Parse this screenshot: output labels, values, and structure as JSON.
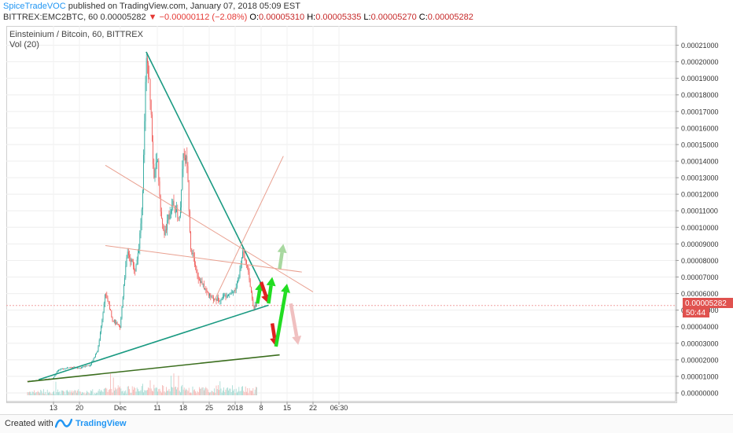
{
  "header": {
    "author": "SpiceTradeVOC",
    "published": "published on TradingView.com, January 07, 2018 05:09 EST",
    "symbol": "BITTREX:EMC2BTC, 60",
    "price": "0.00005282",
    "change_icon": "down-triangle-icon",
    "change": "−0.00000112 (−2.08%)",
    "o_label": "O:",
    "o_value": "0.00005310",
    "h_label": "H:",
    "h_value": "0.00005335",
    "l_label": "L:",
    "l_value": "0.00005270",
    "c_label": "C:",
    "c_value": "0.00005282"
  },
  "legend": {
    "title": "Einsteinium / Bitcoin, 60, BITTREX",
    "volume": "Vol (20)"
  },
  "price_badge": {
    "price": "0.00005282",
    "countdown": "50:44"
  },
  "footer": {
    "created": "Created with",
    "brand": "TradingView",
    "logo_icon": "tradingview-logo-icon"
  },
  "colors": {
    "up": "#26a69a",
    "down": "#ef5350",
    "trend_main": "#1a9a82",
    "support_dark": "#3b6e1e",
    "trend_light": "#e9a090",
    "price_badge": "#e0524f",
    "arrow_green": "#22dd22",
    "arrow_red": "#e02020"
  },
  "chart_data": {
    "type": "candlestick",
    "symbol": "EMC2/BTC",
    "timeframe": "60",
    "x_tick_labels": [
      "13",
      "20",
      "Dec",
      "11",
      "18",
      "25",
      "2018",
      "8",
      "15",
      "22",
      "06:30"
    ],
    "y_tick_labels": [
      "0.00021000",
      "0.00020000",
      "0.00019000",
      "0.00018000",
      "0.00017000",
      "0.00016000",
      "0.00015000",
      "0.00014000",
      "0.00013000",
      "0.00012000",
      "0.00011000",
      "0.00010000",
      "0.00009000",
      "0.00008000",
      "0.00007000",
      "0.00006000",
      "0.00005000",
      "0.00004000",
      "0.00003000",
      "0.00002000",
      "0.00001000",
      "0.00000000"
    ],
    "ylim": [
      0,
      0.000215
    ],
    "last_price": 5.282e-05,
    "price_path": [
      [
        "2017-11-06",
        7.2e-06
      ],
      [
        "2017-11-10",
        7.8e-06
      ],
      [
        "2017-11-13",
        9e-06
      ],
      [
        "2017-11-14",
        1.35e-05
      ],
      [
        "2017-11-17",
        1.55e-05
      ],
      [
        "2017-11-20",
        1.5e-05
      ],
      [
        "2017-11-23",
        1.7e-05
      ],
      [
        "2017-11-25",
        2.65e-05
      ],
      [
        "2017-11-26",
        4.3e-05
      ],
      [
        "2017-11-27",
        6.1e-05
      ],
      [
        "2017-11-29",
        4.4e-05
      ],
      [
        "2017-12-01",
        3.9e-05
      ],
      [
        "2017-12-02",
        6.7e-05
      ],
      [
        "2017-12-03",
        8.5e-05
      ],
      [
        "2017-12-05",
        7.4e-05
      ],
      [
        "2017-12-06",
        8.8e-05
      ],
      [
        "2017-12-07",
        0.000115
      ],
      [
        "2017-12-08",
        0.0002
      ],
      [
        "2017-12-09",
        0.000185
      ],
      [
        "2017-12-10",
        0.00013
      ],
      [
        "2017-12-11",
        0.000145
      ],
      [
        "2017-12-12",
        0.000105
      ],
      [
        "2017-12-13",
        9.5e-05
      ],
      [
        "2017-12-14",
        0.000106
      ],
      [
        "2017-12-15",
        0.000115
      ],
      [
        "2017-12-17",
        0.000105
      ],
      [
        "2017-12-18",
        0.000145
      ],
      [
        "2017-12-19",
        0.00014
      ],
      [
        "2017-12-20",
        8.8e-05
      ],
      [
        "2017-12-22",
        7e-05
      ],
      [
        "2017-12-24",
        6.2e-05
      ],
      [
        "2017-12-26",
        5.6e-05
      ],
      [
        "2017-12-28",
        5.7e-05
      ],
      [
        "2017-12-30",
        6e-05
      ],
      [
        "2018-01-01",
        6.2e-05
      ],
      [
        "2018-01-02",
        7e-05
      ],
      [
        "2018-01-03",
        8.6e-05
      ],
      [
        "2018-01-04",
        8e-05
      ],
      [
        "2018-01-05",
        6.5e-05
      ],
      [
        "2018-01-06",
        5.2e-05
      ],
      [
        "2018-01-07",
        5.28e-05
      ]
    ],
    "trendlines": [
      {
        "from": [
          "2017-12-08",
          0.000206
        ],
        "to": [
          "2018-01-10",
          5.7e-05
        ],
        "color": "#1a9a82"
      },
      {
        "from": [
          "2017-11-09",
          8e-06
        ],
        "to": [
          "2018-01-10",
          5.3e-05
        ],
        "color": "#1a9a82"
      },
      {
        "from": [
          "2017-11-06",
          6.8e-06
        ],
        "to": [
          "2018-01-13",
          2.3e-05
        ],
        "color": "#3b6e1e"
      },
      {
        "from": [
          "2017-11-27",
          8.9e-05
        ],
        "to": [
          "2018-01-19",
          7.3e-05
        ],
        "color": "#e9a090"
      },
      {
        "from": [
          "2017-11-27",
          0.0001375
        ],
        "to": [
          "2018-01-22",
          6.1e-05
        ],
        "color": "#e9a090"
      },
      {
        "from": [
          "2017-12-26",
          5.4e-05
        ],
        "to": [
          "2018-01-14",
          0.000143
        ],
        "color": "#e9a090"
      }
    ],
    "arrows": [
      {
        "from": [
          "2018-01-07",
          5.4e-05
        ],
        "to": [
          "2018-01-08",
          6.7e-05
        ],
        "color": "#22dd22"
      },
      {
        "from": [
          "2018-01-08",
          6.7e-05
        ],
        "to": [
          "2018-01-10",
          5.4e-05
        ],
        "color": "#e02020"
      },
      {
        "from": [
          "2018-01-10",
          5.4e-05
        ],
        "to": [
          "2018-01-11",
          7e-05
        ],
        "color": "#22dd22"
      },
      {
        "from": [
          "2018-01-11",
          4.2e-05
        ],
        "to": [
          "2018-01-12",
          2.8e-05
        ],
        "color": "#e02020"
      },
      {
        "from": [
          "2018-01-12",
          2.8e-05
        ],
        "to": [
          "2018-01-15",
          6.6e-05
        ],
        "color": "#22dd22"
      },
      {
        "from": [
          "2018-01-13",
          7.5e-05
        ],
        "to": [
          "2018-01-14",
          9e-05
        ],
        "color": "#a8d8a0"
      },
      {
        "from": [
          "2018-01-16",
          5.4e-05
        ],
        "to": [
          "2018-01-18",
          2.9e-05
        ],
        "color": "#f0c0c0"
      }
    ]
  }
}
